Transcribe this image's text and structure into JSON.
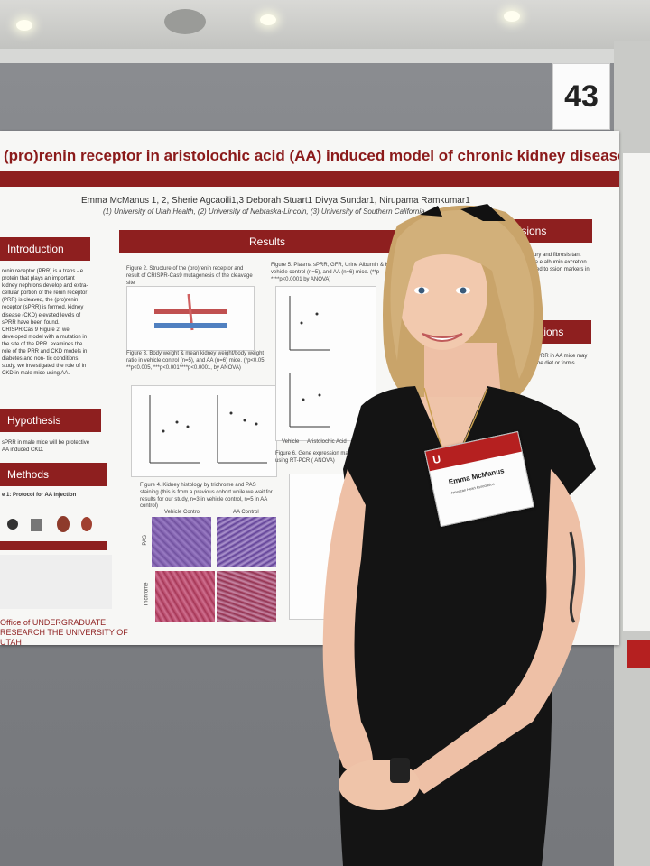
{
  "booth_number": "43",
  "poster": {
    "title": "(pro)renin receptor in aristolochic acid (AA) induced model of chronic kidney disease",
    "authors": "Emma McManus 1, 2, Sherie Agcaoili1,3 Deborah Stuart1 Divya Sundar1, Nirupama Ramkumar1",
    "affiliations": "(1) University of Utah Health, (2) University of Nebraska-Lincoln, (3) University of Southern California",
    "sections": {
      "introduction": "Introduction",
      "results": "Results",
      "hypothesis": "Hypothesis",
      "methods": "Methods",
      "conclusions": "lusions",
      "directions": "ctions"
    },
    "intro_text": "renin receptor (PRR) is a trans - e protein that plays an important kidney nephrons develop and extra-cellular portion of the renin receptor (PRR) is cleaved, the (pro)renin receptor (sPRR) is formed. kidney disease (CKD) elevated levels of sPRR have been found. CRISPR/Cas 9 Figure 2, we developed model with a mutation in the site of the PRR. examines the role of the PRR and CKD models in diabetes and non- tic conditions. study, we investigated the role of in CKD in male mice using AA.",
    "hypothesis_text": "sPRR in male mice will be protective AA induced CKD.",
    "methods_text": "e 1: Protocol for AA injection",
    "fig2_caption": "Figure 2. Structure of the (pro)renin receptor and result of CRISPR-Cas9 mutagenesis of the cleavage site",
    "fig3_caption": "Figure 3. Body weight & mean kidney weight/body weight ratio in vehicle control (n=5), and AA (n=6) mice. (*p<0.05, **p<0.005, ***p<0.001****p<0.0001, by ANOVA)",
    "fig4_caption": "Figure 4. Kidney histology by trichrome and PAS staining (this is from a previous cohort while we wait for results for our study, n=3 in vehicle control, n=5 in AA control)",
    "fig5_caption": "Figure 5. Plasma sPRR, GFR, Urine Albumin & K vehicle control (n=5), and AA (n=6) mice. (**p ****p<0.0001 by ANOVA)",
    "fig6_caption": "Figure 6. Gene expression markers using RT-PCR ( ANOVA)",
    "histo_labels": [
      "Vehicle Control",
      "AA Control",
      "PAS",
      "Trichrome"
    ],
    "axis_labels": [
      "Vehicle",
      "Aristolochic Acid"
    ],
    "conclusion_text": "kidney injury and fibrosis tant sPRR mice e albumin excretion ce compared to ssion markers in",
    "directions_text": "PRR in AA mice may be diet or forms",
    "footer_logo": "Office of UNDERGRADUATE RESEARCH THE UNIVERSITY OF UTAH"
  },
  "badge": {
    "name": "Emma McManus",
    "org": "American Heart Association"
  },
  "colors": {
    "poster_red": "#8e1f1f",
    "title_red": "#8b1a1a",
    "board_gray": "#7c7e82",
    "dress_black": "#141414",
    "hair_blonde": "#c9a46a"
  }
}
